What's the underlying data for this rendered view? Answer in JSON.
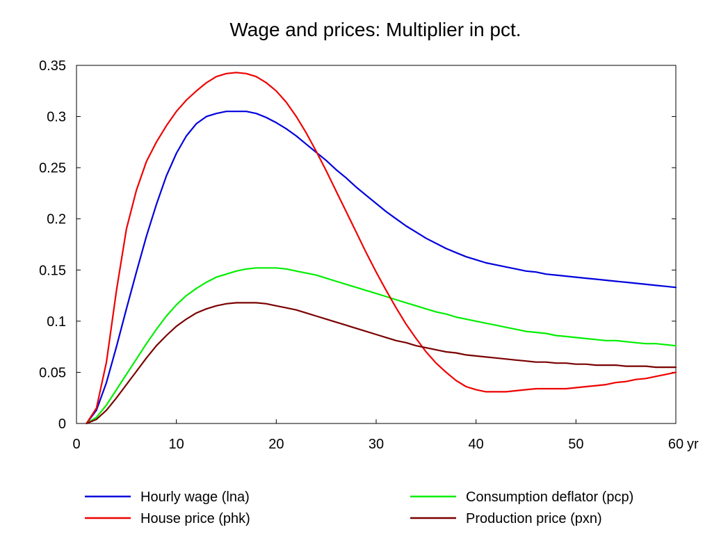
{
  "chart_data": {
    "type": "line",
    "title": "Wage and prices: Multiplier in pct.",
    "x_unit": "yr",
    "xlim": [
      0,
      60
    ],
    "ylim": [
      0,
      0.35
    ],
    "x_ticks": [
      "0",
      "10",
      "20",
      "30",
      "40",
      "50",
      "60"
    ],
    "y_ticks": [
      "0",
      "0.05",
      "0.1",
      "0.15",
      "0.2",
      "0.25",
      "0.3",
      "0.35"
    ],
    "grid": false,
    "legend_position": "bottom",
    "x": [
      1,
      2,
      3,
      4,
      5,
      6,
      7,
      8,
      9,
      10,
      11,
      12,
      13,
      14,
      15,
      16,
      17,
      18,
      19,
      20,
      21,
      22,
      23,
      24,
      25,
      26,
      27,
      28,
      29,
      30,
      31,
      32,
      33,
      34,
      35,
      36,
      37,
      38,
      39,
      40,
      41,
      42,
      43,
      44,
      45,
      46,
      47,
      48,
      49,
      50,
      51,
      52,
      53,
      54,
      55,
      56,
      57,
      58,
      59,
      60
    ],
    "series": [
      {
        "name": "Hourly wage (lna)",
        "color": "#0000dd",
        "values": [
          0.0,
          0.013,
          0.04,
          0.075,
          0.112,
          0.148,
          0.183,
          0.214,
          0.242,
          0.264,
          0.281,
          0.293,
          0.3,
          0.303,
          0.305,
          0.305,
          0.305,
          0.303,
          0.299,
          0.294,
          0.288,
          0.281,
          0.273,
          0.265,
          0.257,
          0.248,
          0.24,
          0.231,
          0.223,
          0.215,
          0.207,
          0.2,
          0.193,
          0.187,
          0.181,
          0.176,
          0.171,
          0.167,
          0.163,
          0.16,
          0.157,
          0.155,
          0.153,
          0.151,
          0.149,
          0.148,
          0.146,
          0.145,
          0.144,
          0.143,
          0.142,
          0.141,
          0.14,
          0.139,
          0.138,
          0.137,
          0.136,
          0.135,
          0.134,
          0.133
        ]
      },
      {
        "name": "Consumption deflator (pcp)",
        "color": "#00ee00",
        "values": [
          0.0,
          0.006,
          0.018,
          0.033,
          0.048,
          0.063,
          0.078,
          0.092,
          0.105,
          0.116,
          0.125,
          0.132,
          0.138,
          0.143,
          0.146,
          0.149,
          0.151,
          0.152,
          0.152,
          0.152,
          0.151,
          0.149,
          0.147,
          0.145,
          0.142,
          0.139,
          0.136,
          0.133,
          0.13,
          0.127,
          0.124,
          0.121,
          0.118,
          0.115,
          0.112,
          0.109,
          0.107,
          0.104,
          0.102,
          0.1,
          0.098,
          0.096,
          0.094,
          0.092,
          0.09,
          0.089,
          0.088,
          0.086,
          0.085,
          0.084,
          0.083,
          0.082,
          0.081,
          0.081,
          0.08,
          0.079,
          0.078,
          0.078,
          0.077,
          0.076
        ]
      },
      {
        "name": "House price (phk)",
        "color": "#ee0000",
        "values": [
          0.0,
          0.015,
          0.06,
          0.13,
          0.19,
          0.228,
          0.256,
          0.275,
          0.291,
          0.305,
          0.316,
          0.325,
          0.333,
          0.339,
          0.342,
          0.343,
          0.342,
          0.339,
          0.333,
          0.325,
          0.314,
          0.3,
          0.284,
          0.266,
          0.247,
          0.227,
          0.207,
          0.187,
          0.167,
          0.148,
          0.13,
          0.113,
          0.097,
          0.083,
          0.07,
          0.059,
          0.05,
          0.042,
          0.036,
          0.033,
          0.031,
          0.031,
          0.031,
          0.032,
          0.033,
          0.034,
          0.034,
          0.034,
          0.034,
          0.035,
          0.036,
          0.037,
          0.038,
          0.04,
          0.041,
          0.043,
          0.044,
          0.046,
          0.048,
          0.05
        ]
      },
      {
        "name": "Production price (pxn)",
        "color": "#7a0000",
        "values": [
          0.0,
          0.004,
          0.013,
          0.025,
          0.038,
          0.051,
          0.064,
          0.076,
          0.086,
          0.095,
          0.102,
          0.108,
          0.112,
          0.115,
          0.117,
          0.118,
          0.118,
          0.118,
          0.117,
          0.115,
          0.113,
          0.111,
          0.108,
          0.105,
          0.102,
          0.099,
          0.096,
          0.093,
          0.09,
          0.087,
          0.084,
          0.081,
          0.079,
          0.076,
          0.074,
          0.072,
          0.07,
          0.069,
          0.067,
          0.066,
          0.065,
          0.064,
          0.063,
          0.062,
          0.061,
          0.06,
          0.06,
          0.059,
          0.059,
          0.058,
          0.058,
          0.057,
          0.057,
          0.057,
          0.056,
          0.056,
          0.056,
          0.055,
          0.055,
          0.055
        ]
      }
    ],
    "legend": [
      {
        "series": 0,
        "label": "Hourly wage (lna)",
        "column": "left",
        "row": 0
      },
      {
        "series": 2,
        "label": "House price (phk)",
        "column": "left",
        "row": 1
      },
      {
        "series": 1,
        "label": "Consumption deflator (pcp)",
        "column": "right",
        "row": 0
      },
      {
        "series": 3,
        "label": "Production price (pxn)",
        "column": "right",
        "row": 1
      }
    ]
  }
}
